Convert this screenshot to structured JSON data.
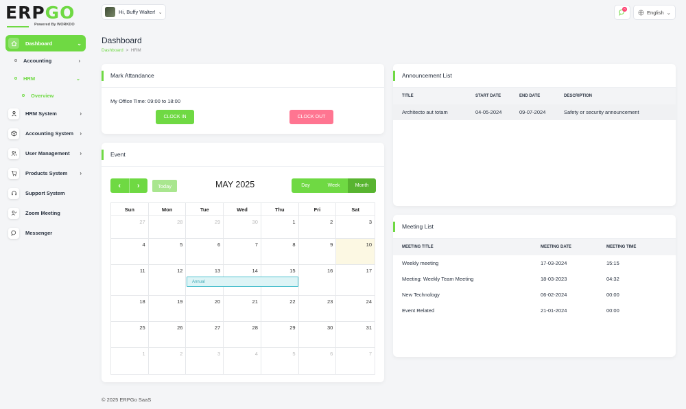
{
  "brand": {
    "logo": "ERPGO",
    "logo_main": "ERP",
    "logo_accent": "GO",
    "powered_by": "Powered By WORKDO"
  },
  "sidebar": {
    "dashboard": "Dashboard",
    "accounting": "Accounting",
    "hrm": "HRM",
    "overview": "Overview",
    "items": [
      {
        "label": "HRM System",
        "icon": "user-icon",
        "has_children": true
      },
      {
        "label": "Accounting System",
        "icon": "box-icon",
        "has_children": true
      },
      {
        "label": "User Management",
        "icon": "users-icon",
        "has_children": true
      },
      {
        "label": "Products System",
        "icon": "cart-icon",
        "has_children": true
      },
      {
        "label": "Support System",
        "icon": "headset-icon",
        "has_children": false
      },
      {
        "label": "Zoom Meeting",
        "icon": "user-video-icon",
        "has_children": false
      },
      {
        "label": "Messenger",
        "icon": "chat-icon",
        "has_children": false
      }
    ]
  },
  "header": {
    "greeting": "Hi, Buffy Walter!",
    "notification_count": "0",
    "language": "English"
  },
  "page": {
    "title": "Dashboard",
    "breadcrumb_home": "Dashboard",
    "breadcrumb_sep": ">",
    "breadcrumb_current": "HRM"
  },
  "attendance": {
    "title": "Mark Attandance",
    "office_time": "My Office Time: 09:00 to 18:00",
    "clock_in": "CLOCK IN",
    "clock_out": "CLOCK OUT"
  },
  "event": {
    "title": "Event",
    "prev": "‹",
    "next": "›",
    "today": "Today",
    "month_title": "MAY 2025",
    "views": [
      "Day",
      "Week",
      "Month"
    ],
    "selected_view": "Month",
    "weekdays": [
      "Sun",
      "Mon",
      "Tue",
      "Wed",
      "Thu",
      "Fri",
      "Sat"
    ],
    "weeks": [
      [
        "27",
        "28",
        "29",
        "30",
        "1",
        "2",
        "3"
      ],
      [
        "4",
        "5",
        "6",
        "7",
        "8",
        "9",
        "10"
      ],
      [
        "11",
        "12",
        "13",
        "14",
        "15",
        "16",
        "17"
      ],
      [
        "18",
        "19",
        "20",
        "21",
        "22",
        "23",
        "24"
      ],
      [
        "25",
        "26",
        "27",
        "28",
        "29",
        "30",
        "31"
      ],
      [
        "1",
        "2",
        "3",
        "4",
        "5",
        "6",
        "7"
      ]
    ],
    "calendar_event": "Annual"
  },
  "announcements": {
    "title": "Announcement List",
    "columns": [
      "TITLE",
      "START DATE",
      "END DATE",
      "DESCRIPTION"
    ],
    "rows": [
      [
        "Architecto aut totam",
        "04-05-2024",
        "09-07-2024",
        "Safety or security announcement"
      ]
    ]
  },
  "meetings": {
    "title": "Meeting List",
    "columns": [
      "MEETING TITLE",
      "MEETING DATE",
      "MEETING TIME"
    ],
    "rows": [
      [
        "Weekly meeting",
        "17-03-2024",
        "15:15"
      ],
      [
        "Meeting: Weekly Team Meeting",
        "18-03-2023",
        "04:32"
      ],
      [
        "New Technology",
        "06-02-2024",
        "00:00"
      ],
      [
        "Event Related",
        "21-01-2024",
        "00:00"
      ]
    ]
  },
  "footer": "© 2025 ERPGo SaaS",
  "colors": {
    "primary": "#6fd943",
    "danger": "#ff7591",
    "event": "#4fc1cf",
    "today": "#fcf8e3"
  }
}
